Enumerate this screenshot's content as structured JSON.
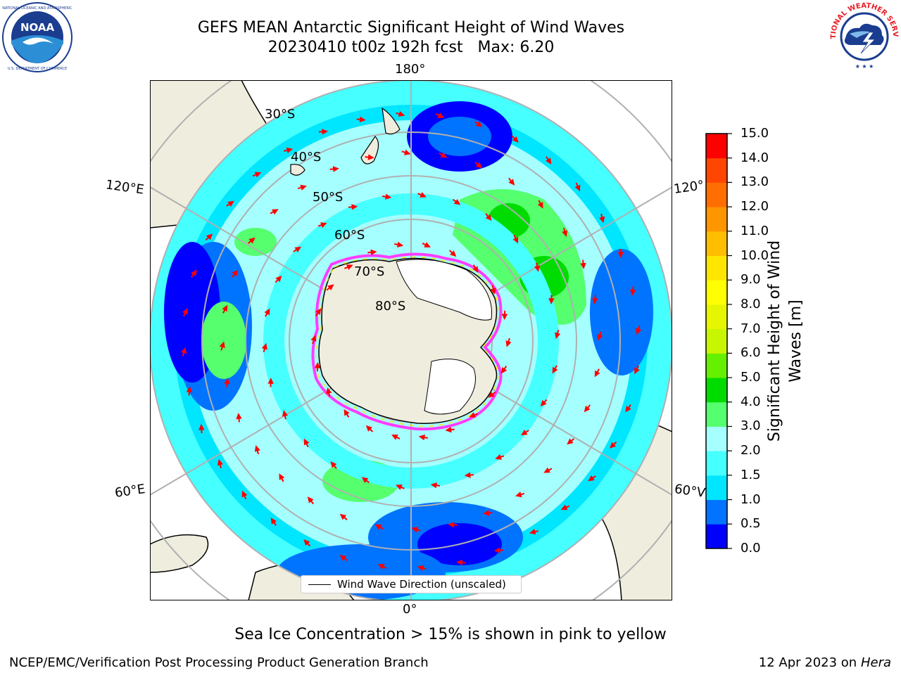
{
  "title": {
    "line1": "GEFS MEAN Antarctic Significant Height of Wind Waves",
    "line2": "20230410 t00z 192h fcst   Max: 6.20"
  },
  "logos": {
    "left": {
      "name": "NOAA",
      "ring_text": "NATIONAL OCEANIC AND ATMOSPHERIC ADMINISTRATION · U.S. DEPARTMENT OF COMMERCE"
    },
    "right": {
      "name": "NATIONAL WEATHER SERVICE"
    }
  },
  "map": {
    "projection": "South Polar Stereographic",
    "longitude_labels": {
      "top": "180°",
      "bottom": "0°",
      "upper_left": "120°E",
      "lower_left": "60°E",
      "upper_right": "120°",
      "lower_right": "60°V"
    },
    "latitude_labels": [
      "30°S",
      "40°S",
      "50°S",
      "60°S",
      "70°S",
      "80°S"
    ],
    "legend_text": "Wind Wave Direction (unscaled)",
    "land_color": "#efedde",
    "ice_color": "#ffffff",
    "sea_ice_edge_colors": [
      "#ff3cff",
      "#ffe600"
    ],
    "arrow_color": "#ff0000",
    "grid_color": "#b0b0b0"
  },
  "colorbar": {
    "label": "Significant Height of Wind Waves [m]",
    "label_line1": "Significant Height of Wind",
    "label_line2": "Waves [m]",
    "ticks": [
      "0.0",
      "0.5",
      "1.0",
      "1.5",
      "2.0",
      "3.0",
      "4.0",
      "5.0",
      "6.0",
      "7.0",
      "8.0",
      "9.0",
      "10.0",
      "11.0",
      "12.0",
      "13.0",
      "14.0",
      "15.0"
    ],
    "colors": [
      "#0000ff",
      "#0073ff",
      "#00e6ff",
      "#46ffff",
      "#a5ffff",
      "#55ff6e",
      "#00dc00",
      "#64f000",
      "#c8f500",
      "#e6f500",
      "#ffff00",
      "#ffe600",
      "#ffbe00",
      "#ff9600",
      "#ff6e00",
      "#ff4600",
      "#ff0000"
    ]
  },
  "footer": {
    "note": "Sea Ice Concentration > 15% is shown in pink to yellow",
    "credit": "NCEP/EMC/Verification Post Processing Product Generation Branch",
    "date": "12 Apr 2023 on",
    "machine": "Hera"
  }
}
